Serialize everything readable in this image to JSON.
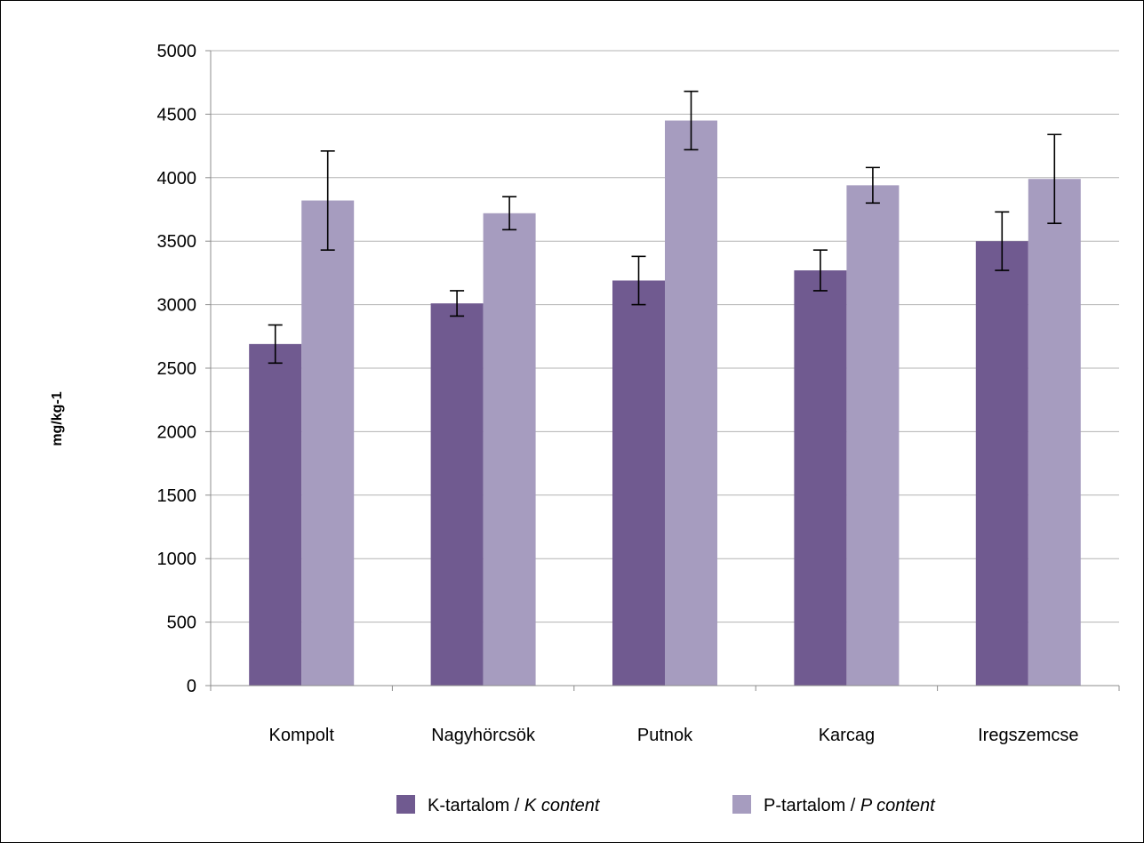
{
  "chart_data": {
    "type": "bar",
    "title": "",
    "xlabel": "",
    "ylabel": "mg/kg-1",
    "ylim": [
      0,
      5000
    ],
    "yticks": [
      0,
      500,
      1000,
      1500,
      2000,
      2500,
      3000,
      3500,
      4000,
      4500,
      5000
    ],
    "grid": true,
    "legend_position": "bottom",
    "categories": [
      "Kompolt",
      "Nagyhörcsök",
      "Putnok",
      "Karcag",
      "Iregszemcse"
    ],
    "series": [
      {
        "name": "K-tartalom / ",
        "name_italic": "K content",
        "color": "#705a90",
        "values": [
          2690,
          3010,
          3190,
          3270,
          3500
        ],
        "error": [
          150,
          100,
          190,
          160,
          230
        ]
      },
      {
        "name": "P-tartalom / ",
        "name_italic": "P content",
        "color": "#a69cbf",
        "values": [
          3820,
          3720,
          4450,
          3940,
          3990
        ],
        "error": [
          390,
          130,
          230,
          140,
          350
        ]
      }
    ]
  }
}
